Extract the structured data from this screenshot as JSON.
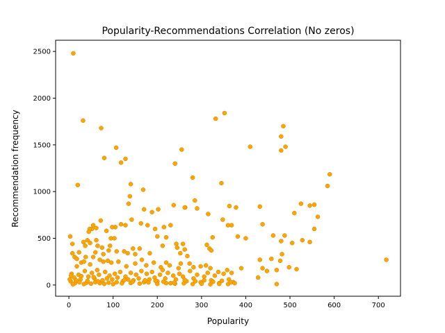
{
  "chart_data": {
    "type": "scatter",
    "title": "Popularity-Recommendations Correlation (No zeros)",
    "xlabel": "Popularity",
    "ylabel": "Recommendation frequency",
    "xlim": [
      -30,
      750
    ],
    "ylim": [
      -120,
      2620
    ],
    "xticks": [
      0,
      100,
      200,
      300,
      400,
      500,
      600,
      700
    ],
    "yticks": [
      0,
      500,
      1000,
      1500,
      2000,
      2500
    ],
    "grid": false,
    "marker_color": "#ffa500",
    "marker_edge_color": "#cc8400",
    "series": [
      {
        "points": [
          [
            10,
            2480
          ],
          [
            32,
            1760
          ],
          [
            73,
            1680
          ],
          [
            352,
            1840
          ],
          [
            332,
            1780
          ],
          [
            485,
            1700
          ],
          [
            480,
            1590
          ],
          [
            490,
            1480
          ],
          [
            410,
            1480
          ],
          [
            480,
            1440
          ],
          [
            107,
            1470
          ],
          [
            255,
            1450
          ],
          [
            80,
            1360
          ],
          [
            128,
            1350
          ],
          [
            118,
            1310
          ],
          [
            240,
            1300
          ],
          [
            20,
            1070
          ],
          [
            345,
            1090
          ],
          [
            590,
            1185
          ],
          [
            585,
            1060
          ],
          [
            280,
            1150
          ],
          [
            140,
            1080
          ],
          [
            168,
            1020
          ],
          [
            290,
            820
          ],
          [
            285,
            905
          ],
          [
            138,
            950
          ],
          [
            135,
            870
          ],
          [
            170,
            810
          ],
          [
            188,
            780
          ],
          [
            202,
            810
          ],
          [
            237,
            855
          ],
          [
            263,
            830
          ],
          [
            262,
            830
          ],
          [
            363,
            845
          ],
          [
            378,
            830
          ],
          [
            432,
            840
          ],
          [
            510,
            770
          ],
          [
            525,
            870
          ],
          [
            545,
            850
          ],
          [
            555,
            860
          ],
          [
            563,
            730
          ],
          [
            315,
            760
          ],
          [
            348,
            700
          ],
          [
            360,
            640
          ],
          [
            368,
            640
          ],
          [
            438,
            650
          ],
          [
            462,
            530
          ],
          [
            488,
            530
          ],
          [
            480,
            470
          ],
          [
            505,
            450
          ],
          [
            528,
            480
          ],
          [
            545,
            460
          ],
          [
            555,
            600
          ],
          [
            400,
            500
          ],
          [
            325,
            510
          ],
          [
            230,
            640
          ],
          [
            215,
            620
          ],
          [
            195,
            600
          ],
          [
            163,
            660
          ],
          [
            178,
            640
          ],
          [
            142,
            700
          ],
          [
            128,
            640
          ],
          [
            118,
            650
          ],
          [
            105,
            620
          ],
          [
            98,
            620
          ],
          [
            72,
            690
          ],
          [
            62,
            610
          ],
          [
            55,
            640
          ],
          [
            52,
            600
          ],
          [
            47,
            600
          ],
          [
            45,
            570
          ],
          [
            85,
            580
          ],
          [
            3,
            520
          ],
          [
            8,
            440
          ],
          [
            33,
            460
          ],
          [
            37,
            420
          ],
          [
            42,
            480
          ],
          [
            48,
            450
          ],
          [
            62,
            480
          ],
          [
            75,
            400
          ],
          [
            93,
            420
          ],
          [
            95,
            500
          ],
          [
            103,
            500
          ],
          [
            60,
            350
          ],
          [
            65,
            420
          ],
          [
            8,
            340
          ],
          [
            13,
            300
          ],
          [
            18,
            280
          ],
          [
            23,
            350
          ],
          [
            38,
            300
          ],
          [
            55,
            300
          ],
          [
            78,
            330
          ],
          [
            90,
            370
          ],
          [
            108,
            360
          ],
          [
            125,
            360
          ],
          [
            133,
            340
          ],
          [
            145,
            390
          ],
          [
            150,
            330
          ],
          [
            160,
            390
          ],
          [
            183,
            340
          ],
          [
            200,
            520
          ],
          [
            212,
            420
          ],
          [
            220,
            510
          ],
          [
            243,
            440
          ],
          [
            245,
            400
          ],
          [
            252,
            340
          ],
          [
            258,
            440
          ],
          [
            262,
            380
          ],
          [
            268,
            310
          ],
          [
            312,
            430
          ],
          [
            318,
            390
          ],
          [
            322,
            370
          ],
          [
            382,
            520
          ],
          [
            28,
            240
          ],
          [
            34,
            250
          ],
          [
            18,
            200
          ],
          [
            48,
            220
          ],
          [
            70,
            270
          ],
          [
            78,
            250
          ],
          [
            88,
            260
          ],
          [
            96,
            240
          ],
          [
            112,
            250
          ],
          [
            130,
            200
          ],
          [
            150,
            230
          ],
          [
            165,
            270
          ],
          [
            175,
            210
          ],
          [
            192,
            240
          ],
          [
            208,
            190
          ],
          [
            220,
            240
          ],
          [
            228,
            210
          ],
          [
            248,
            180
          ],
          [
            253,
            230
          ],
          [
            273,
            230
          ],
          [
            282,
            190
          ],
          [
            298,
            200
          ],
          [
            310,
            210
          ],
          [
            320,
            180
          ],
          [
            338,
            140
          ],
          [
            358,
            160
          ],
          [
            368,
            130
          ],
          [
            390,
            180
          ],
          [
            428,
            80
          ],
          [
            432,
            270
          ],
          [
            438,
            180
          ],
          [
            448,
            150
          ],
          [
            458,
            280
          ],
          [
            470,
            160
          ],
          [
            478,
            260
          ],
          [
            482,
            330
          ],
          [
            498,
            190
          ],
          [
            515,
            170
          ],
          [
            718,
            270
          ],
          [
            6,
            120
          ],
          [
            12,
            80
          ],
          [
            22,
            110
          ],
          [
            26,
            60
          ],
          [
            36,
            150
          ],
          [
            44,
            90
          ],
          [
            52,
            130
          ],
          [
            58,
            70
          ],
          [
            64,
            160
          ],
          [
            68,
            110
          ],
          [
            76,
            50
          ],
          [
            82,
            140
          ],
          [
            92,
            100
          ],
          [
            98,
            60
          ],
          [
            104,
            120
          ],
          [
            110,
            80
          ],
          [
            116,
            140
          ],
          [
            122,
            40
          ],
          [
            128,
            90
          ],
          [
            134,
            60
          ],
          [
            140,
            130
          ],
          [
            146,
            50
          ],
          [
            152,
            110
          ],
          [
            158,
            70
          ],
          [
            164,
            150
          ],
          [
            170,
            30
          ],
          [
            176,
            120
          ],
          [
            182,
            60
          ],
          [
            188,
            140
          ],
          [
            194,
            80
          ],
          [
            200,
            40
          ],
          [
            206,
            110
          ],
          [
            212,
            160
          ],
          [
            218,
            70
          ],
          [
            224,
            130
          ],
          [
            230,
            20
          ],
          [
            236,
            100
          ],
          [
            242,
            60
          ],
          [
            250,
            120
          ],
          [
            258,
            90
          ],
          [
            266,
            40
          ],
          [
            274,
            150
          ],
          [
            282,
            70
          ],
          [
            290,
            110
          ],
          [
            298,
            30
          ],
          [
            306,
            90
          ],
          [
            314,
            130
          ],
          [
            322,
            50
          ],
          [
            330,
            100
          ],
          [
            340,
            20
          ],
          [
            350,
            120
          ],
          [
            362,
            60
          ],
          [
            372,
            30
          ],
          [
            4,
            40
          ],
          [
            14,
            20
          ],
          [
            24,
            30
          ],
          [
            34,
            10
          ],
          [
            40,
            25
          ],
          [
            50,
            15
          ],
          [
            60,
            30
          ],
          [
            70,
            20
          ],
          [
            80,
            12
          ],
          [
            90,
            25
          ],
          [
            100,
            10
          ],
          [
            120,
            18
          ],
          [
            140,
            22
          ],
          [
            160,
            15
          ],
          [
            180,
            28
          ],
          [
            200,
            12
          ],
          [
            220,
            20
          ],
          [
            240,
            15
          ],
          [
            260,
            18
          ],
          [
            280,
            10
          ],
          [
            300,
            14
          ],
          [
            320,
            8
          ],
          [
            340,
            12
          ],
          [
            360,
            10
          ],
          [
            375,
            20
          ],
          [
            470,
            10
          ],
          [
            2,
            60
          ],
          [
            5,
            100
          ],
          [
            9,
            8
          ],
          [
            16,
            50
          ],
          [
            28,
            95
          ],
          [
            42,
            45
          ],
          [
            56,
            85
          ],
          [
            66,
            40
          ],
          [
            86,
            70
          ],
          [
            108,
            30
          ],
          [
            126,
            55
          ],
          [
            144,
            35
          ],
          [
            172,
            50
          ],
          [
            196,
            45
          ],
          [
            214,
            35
          ],
          [
            238,
            25
          ],
          [
            262,
            55
          ],
          [
            286,
            40
          ],
          [
            306,
            50
          ],
          [
            326,
            35
          ],
          [
            346,
            45
          ],
          [
            366,
            30
          ]
        ]
      }
    ]
  }
}
